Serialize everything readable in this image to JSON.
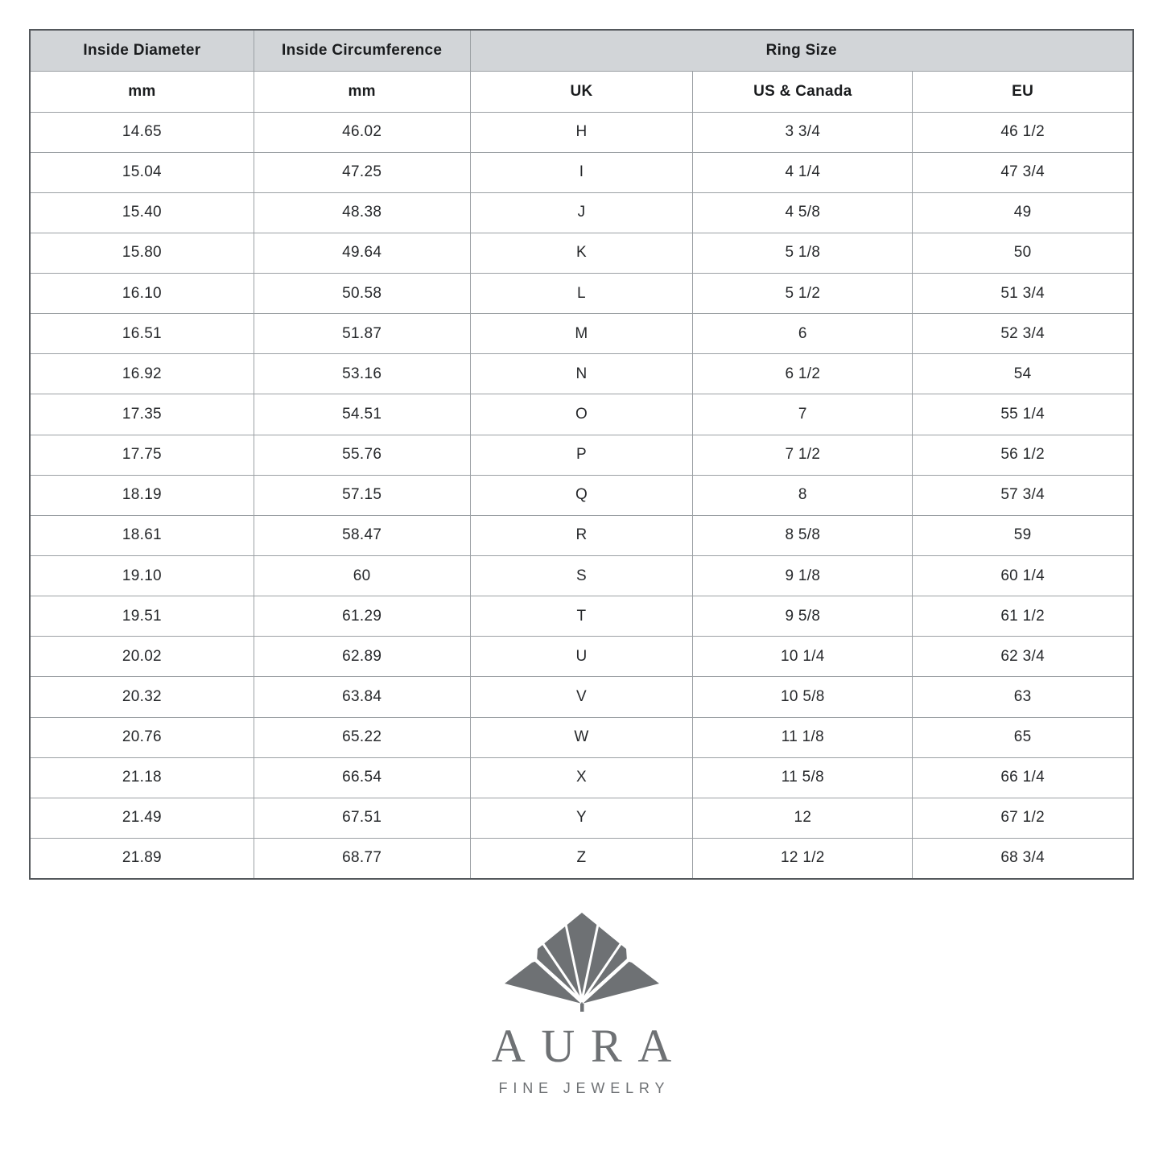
{
  "table": {
    "header": {
      "inside_diameter": "Inside Diameter",
      "inside_circumference": "Inside Circumference",
      "ring_size": "Ring Size",
      "sub": [
        "mm",
        "mm",
        "UK",
        "US & Canada",
        "EU"
      ]
    },
    "rows": [
      [
        "14.65",
        "46.02",
        "H",
        "3 3/4",
        "46 1/2"
      ],
      [
        "15.04",
        "47.25",
        "I",
        "4 1/4",
        "47 3/4"
      ],
      [
        "15.40",
        "48.38",
        "J",
        "4 5/8",
        "49"
      ],
      [
        "15.80",
        "49.64",
        "K",
        "5 1/8",
        "50"
      ],
      [
        "16.10",
        "50.58",
        "L",
        "5 1/2",
        "51 3/4"
      ],
      [
        "16.51",
        "51.87",
        "M",
        "6",
        "52 3/4"
      ],
      [
        "16.92",
        "53.16",
        "N",
        "6 1/2",
        "54"
      ],
      [
        "17.35",
        "54.51",
        "O",
        "7",
        "55 1/4"
      ],
      [
        "17.75",
        "55.76",
        "P",
        "7 1/2",
        "56 1/2"
      ],
      [
        "18.19",
        "57.15",
        "Q",
        "8",
        "57 3/4"
      ],
      [
        "18.61",
        "58.47",
        "R",
        "8 5/8",
        "59"
      ],
      [
        "19.10",
        "60",
        "S",
        "9 1/8",
        "60 1/4"
      ],
      [
        "19.51",
        "61.29",
        "T",
        "9 5/8",
        "61 1/2"
      ],
      [
        "20.02",
        "62.89",
        "U",
        "10 1/4",
        "62 3/4"
      ],
      [
        "20.32",
        "63.84",
        "V",
        "10 5/8",
        "63"
      ],
      [
        "20.76",
        "65.22",
        "W",
        "11 1/8",
        "65"
      ],
      [
        "21.18",
        "66.54",
        "X",
        "11 5/8",
        "66 1/4"
      ],
      [
        "21.49",
        "67.51",
        "Y",
        "12",
        "67 1/2"
      ],
      [
        "21.89",
        "68.77",
        "Z",
        "12 1/2",
        "68 3/4"
      ]
    ]
  },
  "logo": {
    "brand": "AURA",
    "tagline": "FINE JEWELRY",
    "icon": "fan-lotus-icon"
  },
  "colors": {
    "page_bg": "#ffffff",
    "header_bg": "#d2d5d8",
    "grid_border": "#9ba0a4",
    "outer_border": "#54585c",
    "header_text": "#1a1c1e",
    "body_text": "#26282b",
    "logo_gray": "#6e7174"
  }
}
